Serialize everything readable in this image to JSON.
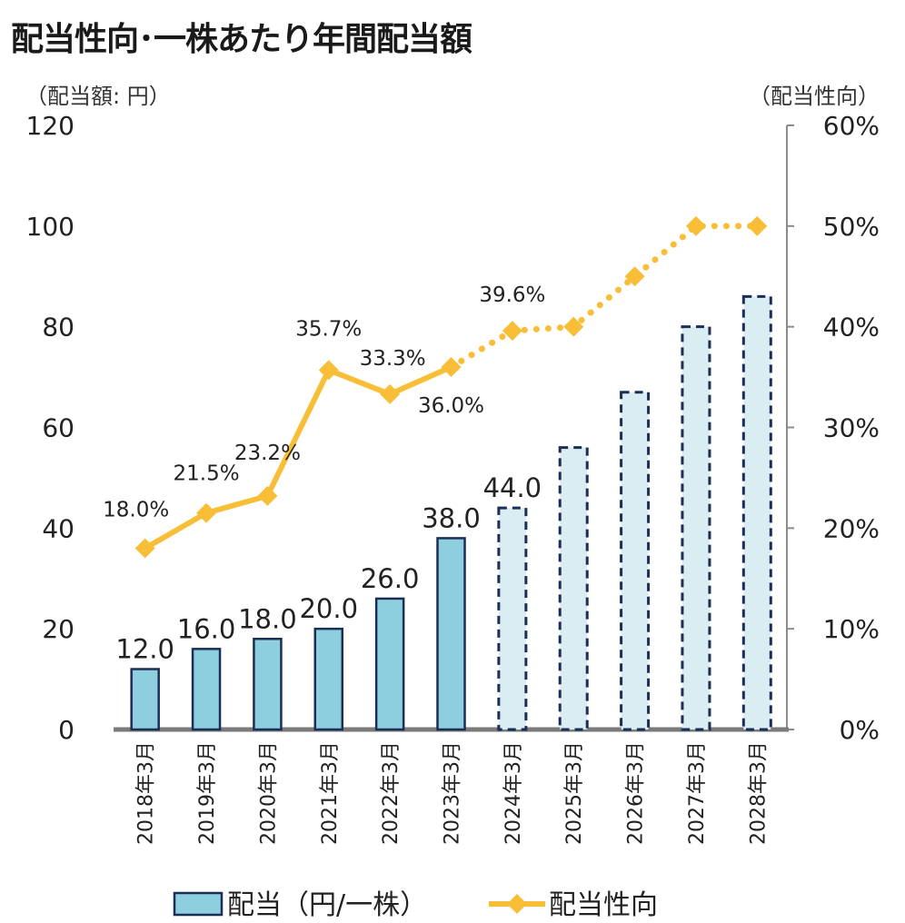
{
  "title": "配当性向･一株あたり年間配当額",
  "chart_data": {
    "type": "bar",
    "title": "配当性向･一株あたり年間配当額",
    "categories": [
      "2018年3月",
      "2019年3月",
      "2020年3月",
      "2021年3月",
      "2022年3月",
      "2023年3月",
      "2024年3月",
      "2025年3月",
      "2026年3月",
      "2027年3月",
      "2028年3月"
    ],
    "y_left": {
      "label": "（配当額: 円）",
      "ticks": [
        "0",
        "20",
        "40",
        "60",
        "80",
        "100",
        "120"
      ],
      "ylim": [
        0,
        120
      ]
    },
    "y_right": {
      "label": "（配当性向）",
      "ticks": [
        "0%",
        "10%",
        "20%",
        "30%",
        "40%",
        "50%",
        "60%"
      ],
      "ylim": [
        0,
        0.6
      ]
    },
    "series": [
      {
        "name": "配当（円/一株）",
        "type": "bar",
        "axis": "left",
        "values": [
          12.0,
          16.0,
          18.0,
          20.0,
          26.0,
          38.0,
          44.0,
          56.0,
          67.0,
          80.0,
          86.0
        ],
        "labels": [
          "12.0",
          "16.0",
          "18.0",
          "20.0",
          "26.0",
          "38.0",
          "44.0",
          "",
          "",
          "",
          ""
        ],
        "projected_from_index": 6,
        "color": "#8ecfdf",
        "projected_color": "#daedf3",
        "stroke": "#1b2e57"
      },
      {
        "name": "配当性向",
        "type": "line",
        "axis": "right",
        "values": [
          0.18,
          0.215,
          0.232,
          0.357,
          0.333,
          0.36,
          0.396,
          0.4,
          0.45,
          0.5,
          0.5
        ],
        "labels": [
          "18.0%",
          "21.5%",
          "23.2%",
          "35.7%",
          "33.3%",
          "36.0%",
          "39.6%",
          "",
          "",
          "",
          ""
        ],
        "projected_from_index": 5,
        "color": "#f9be38"
      }
    ],
    "legend_position": "bottom-center",
    "grid": false
  }
}
